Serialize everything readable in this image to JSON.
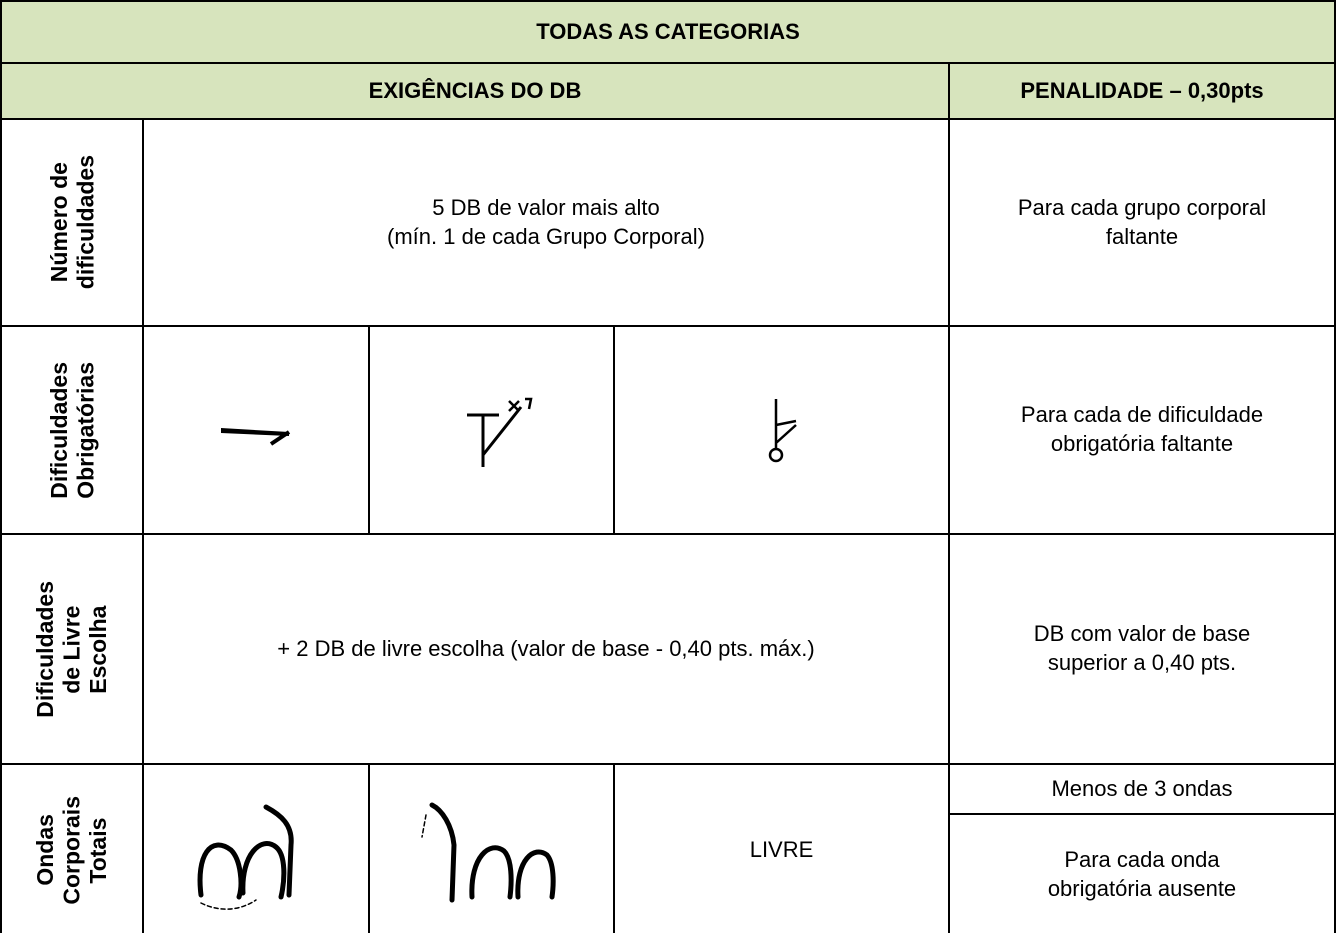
{
  "table": {
    "title": "TODAS AS CATEGORIAS",
    "headers": [
      "EXIGÊNCIAS DO DB",
      "PENALIDADE – 0,30pts"
    ],
    "rows": [
      {
        "label": [
          "Número de",
          "dificuldades"
        ],
        "requirement": [
          "5 DB de valor mais alto",
          "(mín. 1 de cada Grupo Corporal)"
        ],
        "penalty": [
          "Para cada grupo corporal",
          "faltante"
        ]
      },
      {
        "label": [
          "Dificuldades",
          "Obrigatórias"
        ],
        "penalty": [
          "Para cada de dificuldade",
          "obrigatória faltante"
        ]
      },
      {
        "label": [
          "Dificuldades",
          "de Livre",
          "Escolha"
        ],
        "requirement": [
          "+ 2 DB de livre escolha (valor de base - 0,40 pts. máx.)"
        ],
        "penalty": [
          "DB com valor de base",
          "superior a 0,40 pts."
        ]
      },
      {
        "label": [
          "Ondas",
          "Corporais",
          "Totais"
        ],
        "requirement": [
          "LIVRE"
        ],
        "penalty": [
          [
            "Menos de 3 ondas"
          ],
          [
            "Para cada onda",
            "obrigatória ausente"
          ]
        ]
      }
    ]
  }
}
